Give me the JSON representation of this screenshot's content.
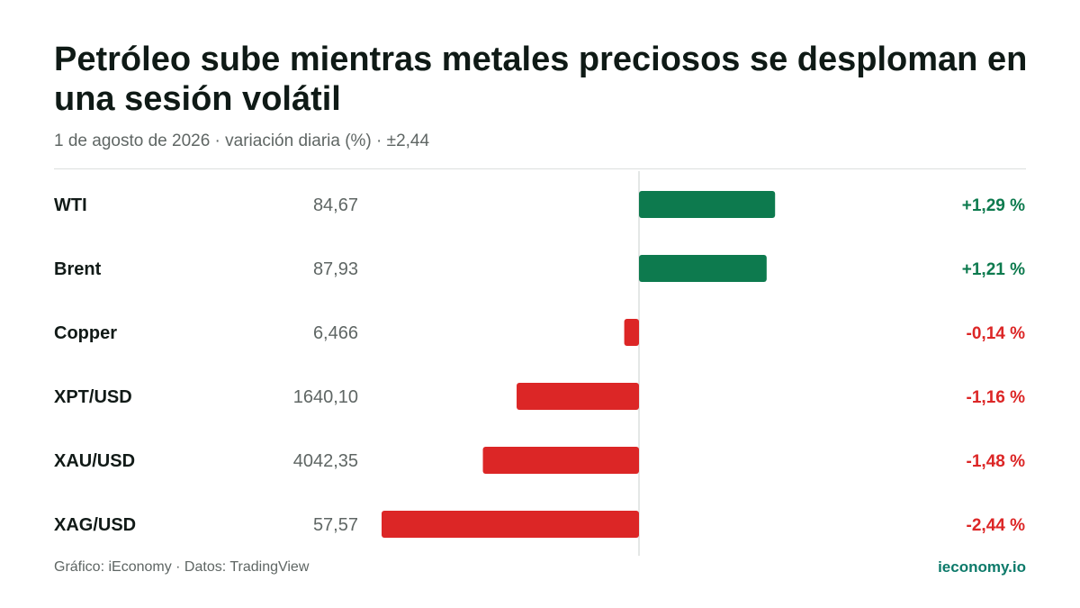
{
  "header": {
    "title": "Petróleo sube mientras metales preciosos se desploman en una sesión volátil",
    "subtitle": "1 de agosto de 2026 · variación diaria (%) · ±2,44"
  },
  "footer": {
    "source": "Gráfico: iEconomy · Datos: TradingView",
    "brand": "ieconomy.io"
  },
  "colors": {
    "positive": "#0d7a4e",
    "negative": "#dc2626",
    "axis": "#dcdfde"
  },
  "chart_data": {
    "type": "bar",
    "orientation": "horizontal-diverging",
    "xlim": [
      -2.44,
      2.44
    ],
    "categories": [
      "WTI",
      "Brent",
      "Copper",
      "XPT/USD",
      "XAU/USD",
      "XAG/USD"
    ],
    "prices": [
      "84,67",
      "87,93",
      "6,466",
      "1640,10",
      "4042,35",
      "57,57"
    ],
    "values": [
      1.29,
      1.21,
      -0.14,
      -1.16,
      -1.48,
      -2.44
    ],
    "value_labels": [
      "+1,29 %",
      "+1,21 %",
      "-0,14 %",
      "-1,16 %",
      "-1,48 %",
      "-2,44 %"
    ]
  }
}
